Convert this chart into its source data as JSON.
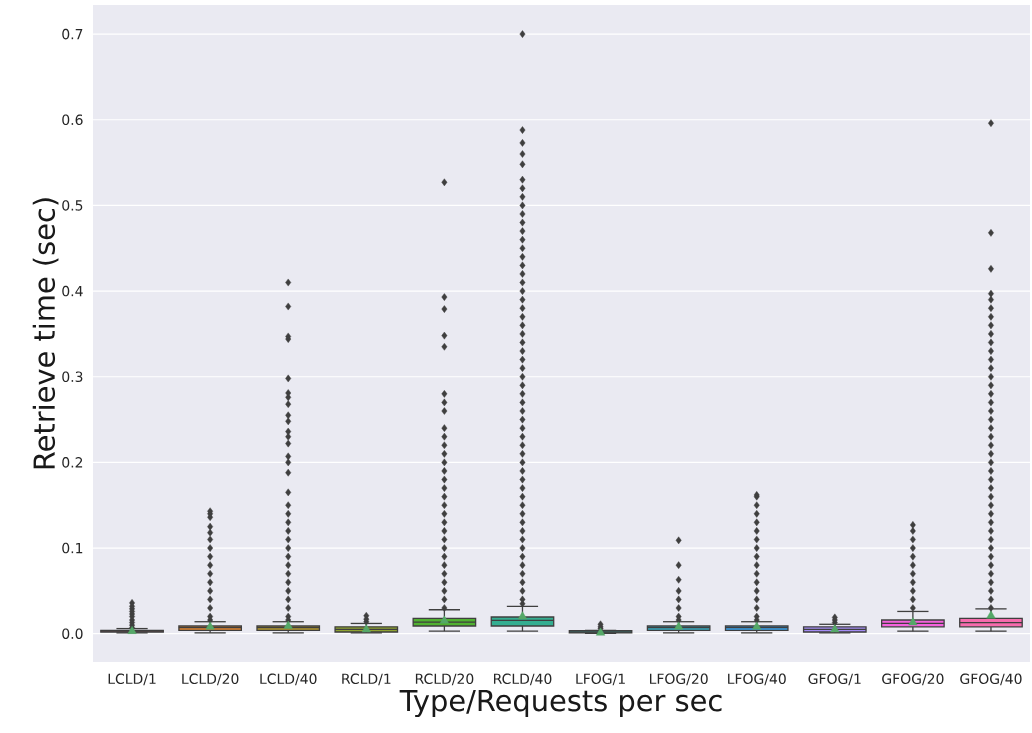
{
  "chart_data": {
    "type": "box",
    "xlabel": "Type/Requests per sec",
    "ylabel": "Retrieve time (sec)",
    "categories": [
      "LCLD/1",
      "LCLD/20",
      "LCLD/40",
      "RCLD/1",
      "RCLD/20",
      "RCLD/40",
      "LFOG/1",
      "LFOG/20",
      "LFOG/40",
      "GFOG/1",
      "GFOG/20",
      "GFOG/40"
    ],
    "colors": [
      "#f77189",
      "#e18632",
      "#b49a31",
      "#8fa331",
      "#50b131",
      "#34ae91",
      "#36ada4",
      "#38aabf",
      "#3ba3ec",
      "#a48cf4",
      "#f461dd",
      "#f66bad"
    ],
    "boxes": [
      {
        "low": 0.001,
        "q1": 0.002,
        "median": 0.003,
        "q3": 0.004,
        "high": 0.006,
        "mean": 0.003,
        "outliers": [
          0.007,
          0.01,
          0.013,
          0.016,
          0.02,
          0.023,
          0.026,
          0.029,
          0.032,
          0.036
        ]
      },
      {
        "low": 0.001,
        "q1": 0.004,
        "median": 0.007,
        "q3": 0.009,
        "high": 0.014,
        "mean": 0.008,
        "outliers": [
          0.016,
          0.02,
          0.03,
          0.04,
          0.05,
          0.06,
          0.07,
          0.08,
          0.09,
          0.1,
          0.11,
          0.118,
          0.125,
          0.136,
          0.14,
          0.143
        ]
      },
      {
        "low": 0.001,
        "q1": 0.004,
        "median": 0.007,
        "q3": 0.009,
        "high": 0.014,
        "mean": 0.009,
        "outliers": [
          0.016,
          0.02,
          0.03,
          0.04,
          0.05,
          0.06,
          0.07,
          0.08,
          0.09,
          0.1,
          0.11,
          0.12,
          0.13,
          0.14,
          0.15,
          0.165,
          0.188,
          0.2,
          0.207,
          0.222,
          0.23,
          0.236,
          0.248,
          0.255,
          0.268,
          0.276,
          0.281,
          0.298,
          0.344,
          0.347,
          0.382,
          0.41
        ]
      },
      {
        "low": 0.001,
        "q1": 0.002,
        "median": 0.005,
        "q3": 0.008,
        "high": 0.012,
        "mean": 0.005,
        "outliers": [
          0.014,
          0.017,
          0.021
        ]
      },
      {
        "low": 0.003,
        "q1": 0.009,
        "median": 0.0135,
        "q3": 0.018,
        "high": 0.028,
        "mean": 0.015,
        "outliers": [
          0.03,
          0.04,
          0.05,
          0.06,
          0.07,
          0.08,
          0.09,
          0.1,
          0.11,
          0.12,
          0.13,
          0.14,
          0.15,
          0.16,
          0.17,
          0.18,
          0.19,
          0.2,
          0.21,
          0.22,
          0.23,
          0.24,
          0.26,
          0.27,
          0.28,
          0.335,
          0.348,
          0.379,
          0.393,
          0.527
        ]
      },
      {
        "low": 0.003,
        "q1": 0.009,
        "median": 0.0155,
        "q3": 0.0195,
        "high": 0.032,
        "mean": 0.02,
        "outliers": [
          0.035,
          0.04,
          0.05,
          0.06,
          0.07,
          0.08,
          0.09,
          0.1,
          0.11,
          0.12,
          0.13,
          0.14,
          0.15,
          0.16,
          0.17,
          0.18,
          0.19,
          0.2,
          0.21,
          0.22,
          0.23,
          0.24,
          0.25,
          0.26,
          0.27,
          0.28,
          0.29,
          0.3,
          0.31,
          0.32,
          0.33,
          0.34,
          0.35,
          0.36,
          0.37,
          0.38,
          0.39,
          0.4,
          0.41,
          0.42,
          0.43,
          0.44,
          0.45,
          0.46,
          0.47,
          0.48,
          0.49,
          0.5,
          0.51,
          0.52,
          0.53,
          0.548,
          0.56,
          0.573,
          0.588,
          0.7
        ]
      },
      {
        "low": 0.0005,
        "q1": 0.001,
        "median": 0.002,
        "q3": 0.0035,
        "high": 0.004,
        "mean": 0.001,
        "outliers": [
          0.006,
          0.008,
          0.011
        ]
      },
      {
        "low": 0.001,
        "q1": 0.004,
        "median": 0.007,
        "q3": 0.009,
        "high": 0.014,
        "mean": 0.008,
        "outliers": [
          0.016,
          0.02,
          0.03,
          0.04,
          0.05,
          0.063,
          0.08,
          0.109
        ]
      },
      {
        "low": 0.001,
        "q1": 0.004,
        "median": 0.007,
        "q3": 0.009,
        "high": 0.014,
        "mean": 0.008,
        "outliers": [
          0.016,
          0.02,
          0.03,
          0.04,
          0.05,
          0.06,
          0.07,
          0.08,
          0.09,
          0.1,
          0.11,
          0.12,
          0.13,
          0.14,
          0.15,
          0.16,
          0.162
        ]
      },
      {
        "low": 0.001,
        "q1": 0.002,
        "median": 0.005,
        "q3": 0.008,
        "high": 0.011,
        "mean": 0.005,
        "outliers": [
          0.013,
          0.016,
          0.019
        ]
      },
      {
        "low": 0.003,
        "q1": 0.008,
        "median": 0.012,
        "q3": 0.016,
        "high": 0.026,
        "mean": 0.013,
        "outliers": [
          0.03,
          0.04,
          0.05,
          0.06,
          0.07,
          0.08,
          0.09,
          0.1,
          0.11,
          0.12,
          0.127
        ]
      },
      {
        "low": 0.003,
        "q1": 0.008,
        "median": 0.013,
        "q3": 0.018,
        "high": 0.029,
        "mean": 0.021,
        "outliers": [
          0.03,
          0.04,
          0.05,
          0.06,
          0.07,
          0.08,
          0.09,
          0.1,
          0.11,
          0.12,
          0.13,
          0.14,
          0.15,
          0.16,
          0.17,
          0.18,
          0.19,
          0.2,
          0.21,
          0.22,
          0.23,
          0.24,
          0.25,
          0.26,
          0.27,
          0.28,
          0.29,
          0.3,
          0.31,
          0.32,
          0.33,
          0.34,
          0.35,
          0.36,
          0.37,
          0.38,
          0.39,
          0.397,
          0.426,
          0.468,
          0.596
        ]
      }
    ],
    "ylim": [
      -0.033,
      0.734
    ],
    "yticks": [
      {
        "value": 0,
        "label": "0.0"
      },
      0.1,
      0.2,
      0.3,
      0.4,
      0.5,
      0.6,
      0.7
    ],
    "grid": "y",
    "marker": "diamond"
  }
}
